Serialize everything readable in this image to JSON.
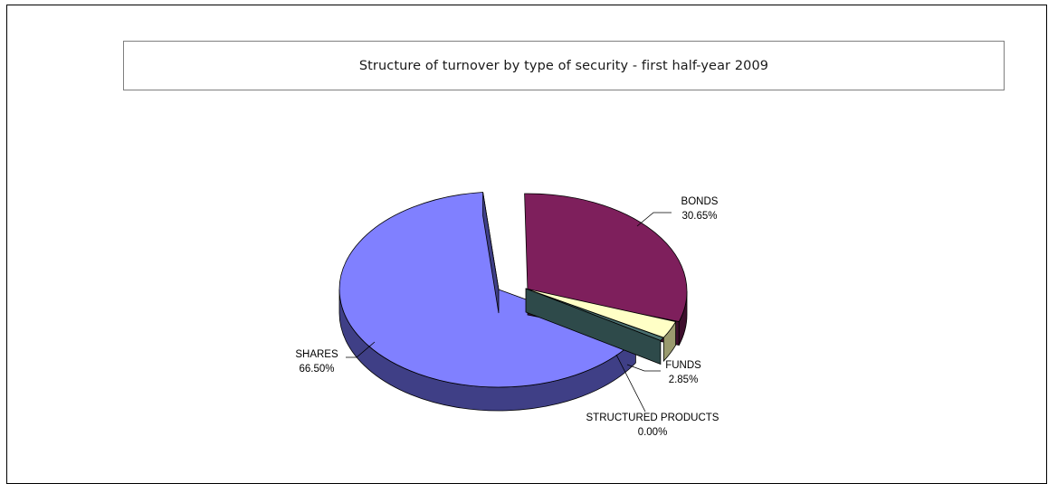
{
  "chart_data": {
    "type": "pie",
    "title": "Structure of turnover by type of security - first half-year 2009",
    "slices": [
      {
        "label": "BONDS",
        "value": 30.65,
        "value_label": "30.65%",
        "color": "#7e1f5c",
        "exploded": true
      },
      {
        "label": "FUNDS",
        "value": 2.85,
        "value_label": "2.85%",
        "color": "#ffffc6",
        "exploded": true
      },
      {
        "label": "STRUCTURED PRODUCTS",
        "value": 0.0,
        "value_label": "0.00%",
        "color": "#4a6f6f",
        "exploded": true
      },
      {
        "label": "SHARES",
        "value": 66.5,
        "value_label": "66.50%",
        "color": "#8080ff",
        "exploded": false
      }
    ],
    "style": "3d-exploded",
    "legend": "none"
  }
}
